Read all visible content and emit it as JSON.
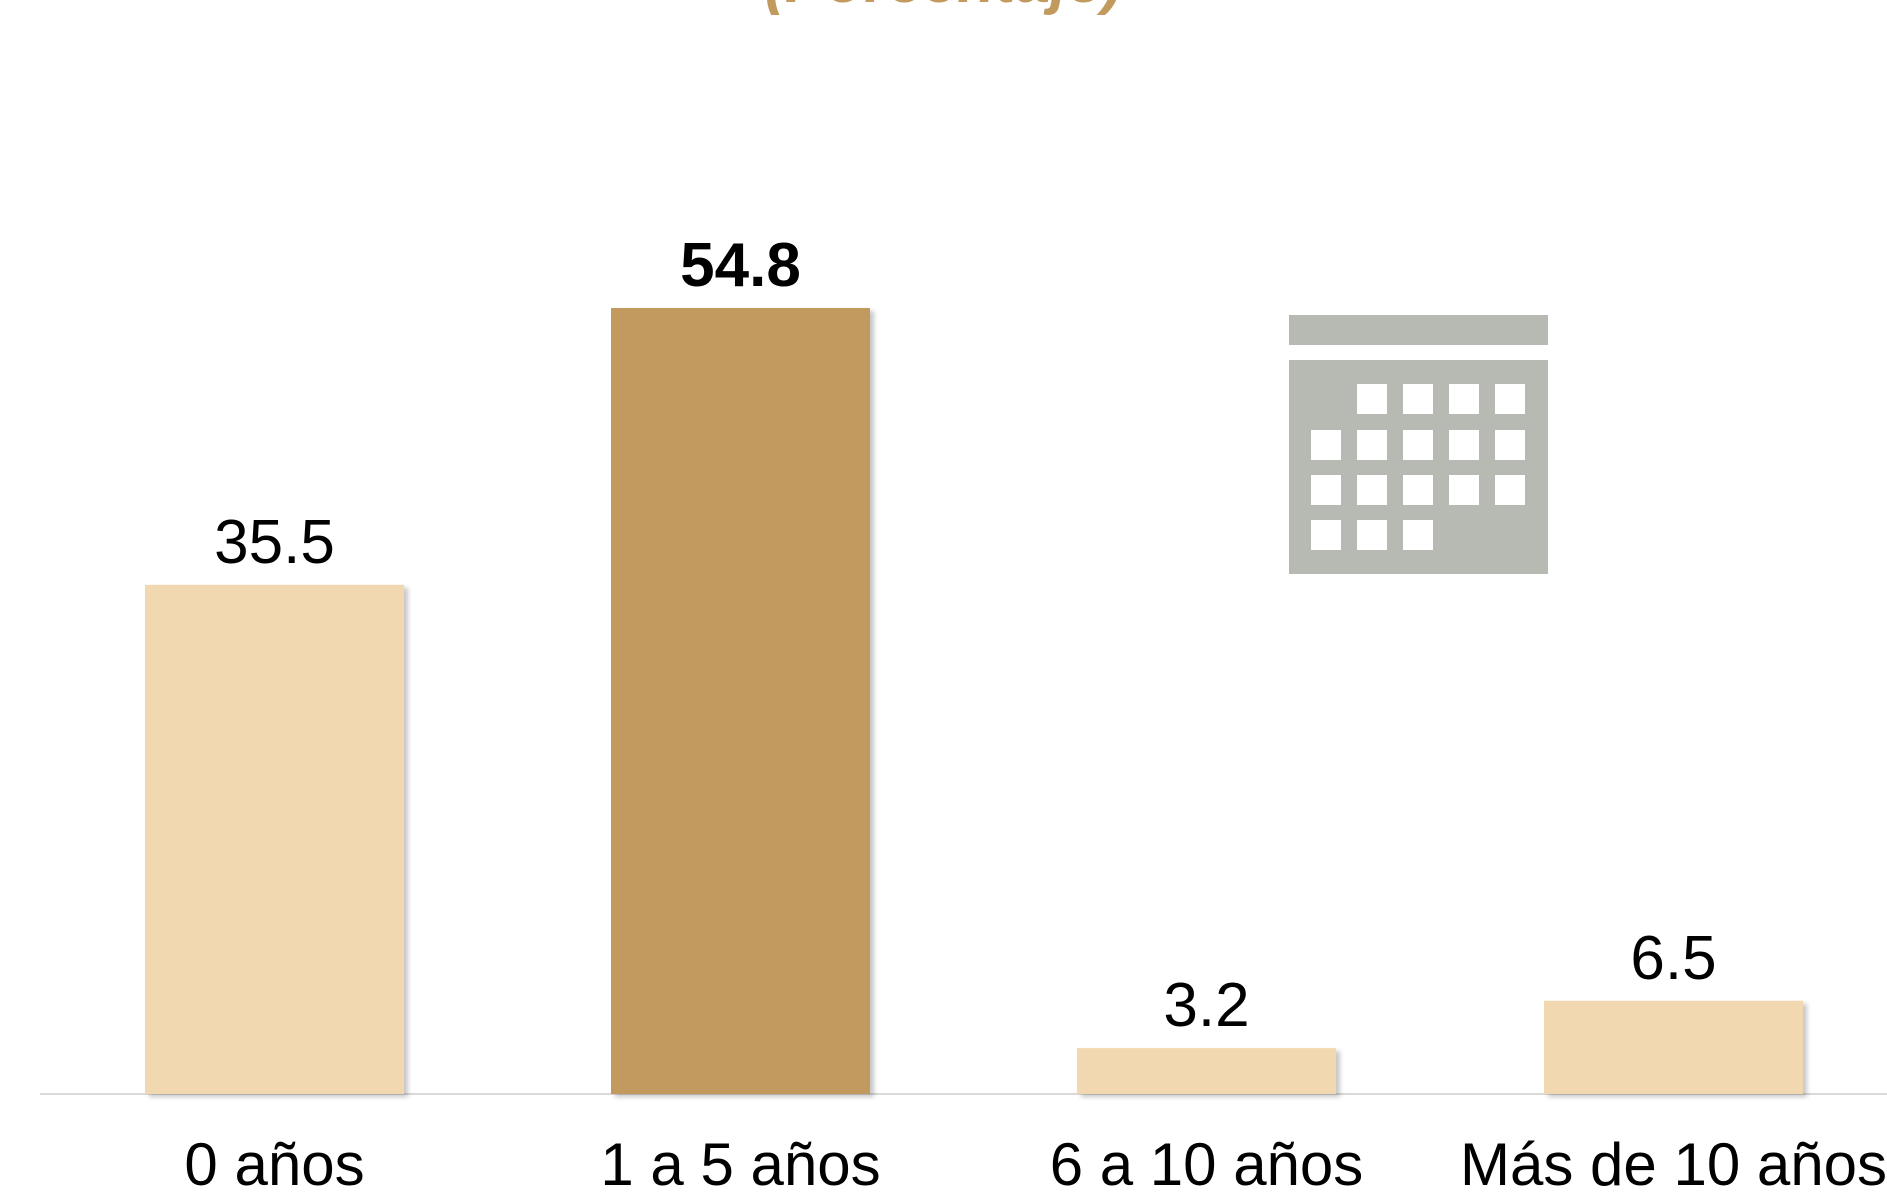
{
  "subtitle": "(Porcentaje)",
  "colors": {
    "bar_light": "#f2d8b1",
    "bar_highlight": "#c29a5f",
    "axis_line": "#d9d9d9",
    "icon": "#b6bab3",
    "subtitle": "#c39a5e"
  },
  "decoration": {
    "icon": "calendar-icon"
  },
  "chart_data": {
    "type": "bar",
    "categories": [
      "0 años",
      "1 a 5 años",
      "6 a 10 años",
      "Más de 10 años"
    ],
    "values": [
      35.5,
      54.8,
      3.2,
      6.5
    ],
    "value_labels": [
      "35.5",
      "54.8",
      "3.2",
      "6.5"
    ],
    "highlight_index": 1,
    "title": "",
    "xlabel": "",
    "ylabel": "",
    "ylim": [
      0,
      54.8
    ],
    "grid": false,
    "legend": "none"
  }
}
